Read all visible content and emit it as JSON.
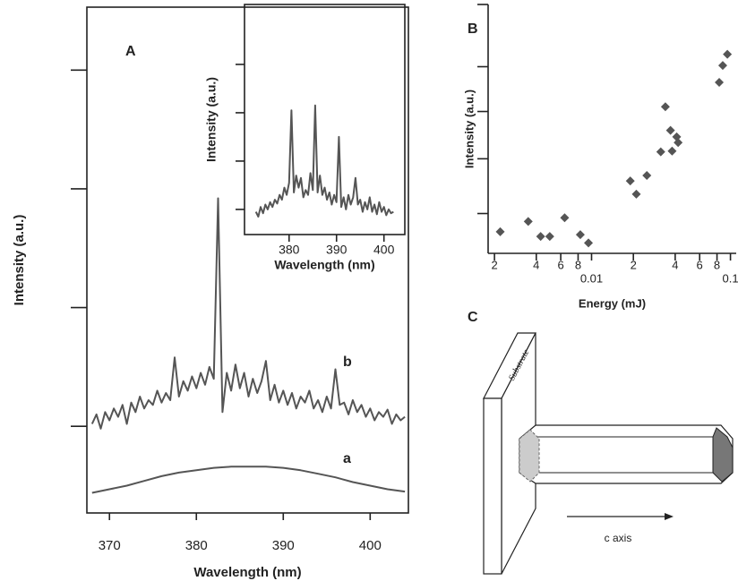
{
  "chart_data": [
    {
      "type": "line",
      "panel_label": "A",
      "xlabel": "Wavelength (nm)",
      "ylabel": "Intensity (a.u.)",
      "xlim": [
        367.4,
        404.4
      ],
      "xticks": [
        370,
        380,
        390,
        400
      ],
      "ylim": [
        0.27,
        4.53
      ],
      "yticks": [
        1,
        2,
        3,
        4
      ],
      "series": [
        {
          "name": "a",
          "color": "#555555",
          "x": [
            368,
            370,
            372,
            374,
            376,
            378,
            380,
            382,
            384,
            386,
            388,
            390,
            392,
            394,
            396,
            398,
            400,
            402,
            404
          ],
          "values": [
            0.44,
            0.47,
            0.5,
            0.54,
            0.58,
            0.61,
            0.63,
            0.65,
            0.66,
            0.66,
            0.66,
            0.65,
            0.63,
            0.6,
            0.57,
            0.53,
            0.5,
            0.47,
            0.45
          ]
        },
        {
          "name": "b",
          "color": "#555555",
          "x": [
            368,
            368.5,
            369,
            369.5,
            370,
            370.5,
            371,
            371.5,
            372,
            372.5,
            373,
            373.5,
            374,
            374.5,
            375,
            375.5,
            376,
            376.5,
            377,
            377.5,
            378,
            378.5,
            379,
            379.5,
            380,
            380.5,
            381,
            381.5,
            382,
            382.5,
            383,
            383.5,
            384,
            384.5,
            385,
            385.5,
            386,
            386.5,
            387,
            387.5,
            388,
            388.5,
            389,
            389.5,
            390,
            390.5,
            391,
            391.5,
            392,
            392.5,
            393,
            393.5,
            394,
            394.5,
            395,
            395.5,
            396,
            396.5,
            397,
            397.5,
            398,
            398.5,
            399,
            399.5,
            400,
            400.5,
            401,
            401.5,
            402,
            402.5,
            403,
            403.5,
            404
          ],
          "values": [
            1.02,
            1.1,
            0.98,
            1.12,
            1.05,
            1.15,
            1.08,
            1.18,
            1.02,
            1.2,
            1.12,
            1.25,
            1.15,
            1.22,
            1.18,
            1.3,
            1.2,
            1.28,
            1.22,
            1.58,
            1.25,
            1.38,
            1.3,
            1.42,
            1.32,
            1.45,
            1.35,
            1.5,
            1.4,
            2.92,
            1.12,
            1.45,
            1.3,
            1.52,
            1.32,
            1.45,
            1.25,
            1.4,
            1.28,
            1.38,
            1.55,
            1.22,
            1.35,
            1.2,
            1.3,
            1.18,
            1.28,
            1.15,
            1.25,
            1.2,
            1.3,
            1.15,
            1.22,
            1.12,
            1.25,
            1.15,
            1.48,
            1.18,
            1.2,
            1.1,
            1.22,
            1.12,
            1.18,
            1.08,
            1.15,
            1.05,
            1.12,
            1.08,
            1.14,
            1.02,
            1.1,
            1.05,
            1.08
          ]
        }
      ]
    },
    {
      "type": "line",
      "xlabel": "Wavelength (nm)",
      "ylabel": "Intensity (a.u.)",
      "xlim": [
        370.6,
        404.4
      ],
      "xticks": [
        380,
        390,
        400
      ],
      "ylim": [
        0.48,
        5.24
      ],
      "yticks": [
        1,
        2,
        3,
        4
      ],
      "series": [
        {
          "color": "#555555",
          "x": [
            373,
            373.5,
            374,
            374.5,
            375,
            375.5,
            376,
            376.5,
            377,
            377.5,
            378,
            378.5,
            379,
            379.5,
            380,
            380.5,
            381,
            381.5,
            382,
            382.5,
            383,
            383.5,
            384,
            384.5,
            385,
            385.5,
            386,
            386.5,
            387,
            387.5,
            388,
            388.5,
            389,
            389.5,
            390,
            390.5,
            391,
            391.5,
            392,
            392.5,
            393,
            393.5,
            394,
            394.5,
            395,
            395.5,
            396,
            396.5,
            397,
            397.5,
            398,
            398.5,
            399,
            399.5,
            400,
            400.5,
            401,
            401.5,
            402
          ],
          "values": [
            0.95,
            0.85,
            1.05,
            0.92,
            1.1,
            1.0,
            1.15,
            1.05,
            1.2,
            1.12,
            1.3,
            1.2,
            1.45,
            1.3,
            1.55,
            3.05,
            1.35,
            1.7,
            1.45,
            1.65,
            1.25,
            1.4,
            1.3,
            1.75,
            1.4,
            3.15,
            1.35,
            1.7,
            1.3,
            1.45,
            1.2,
            1.35,
            1.1,
            1.3,
            1.15,
            2.5,
            1.05,
            1.25,
            1.0,
            1.3,
            1.1,
            1.25,
            1.65,
            1.1,
            1.2,
            0.95,
            1.15,
            1.0,
            1.25,
            0.95,
            1.1,
            0.9,
            1.15,
            0.95,
            1.05,
            0.88,
            1.0,
            0.92,
            0.95
          ]
        }
      ]
    },
    {
      "type": "scatter",
      "panel_label": "B",
      "xlabel": "Energy (mJ)",
      "ylabel": "Intensity (a.u.)",
      "xscale": "log",
      "xlim": [
        0.0018,
        0.11
      ],
      "xticks": [
        {
          "value": 0.002,
          "label": "2"
        },
        {
          "value": 0.004,
          "label": "4"
        },
        {
          "value": 0.006,
          "label": "6"
        },
        {
          "value": 0.008,
          "label": "8"
        },
        0.01,
        {
          "value": 0.02,
          "label": "2"
        },
        {
          "value": 0.04,
          "label": "4"
        },
        {
          "value": 0.06,
          "label": "6"
        },
        {
          "value": 0.08,
          "label": "8"
        },
        0.1
      ],
      "ylim": [
        0,
        10
      ],
      "yticks": [
        1.6,
        3.8,
        5.7,
        7.5,
        10
      ],
      "color": "#555555",
      "x": [
        0.0022,
        0.0035,
        0.0043,
        0.005,
        0.0064,
        0.0083,
        0.0095,
        0.019,
        0.021,
        0.025,
        0.0315,
        0.034,
        0.037,
        0.038,
        0.041,
        0.042,
        0.083,
        0.088,
        0.095
      ],
      "values": [
        0.87,
        1.28,
        0.68,
        0.68,
        1.43,
        0.75,
        0.42,
        2.91,
        2.38,
        3.13,
        4.08,
        5.89,
        4.94,
        4.11,
        4.68,
        4.45,
        6.87,
        7.55,
        8.0
      ]
    }
  ],
  "diagram": {
    "panel_label": "C",
    "substrate": "Substrate",
    "axis_label": "c axis"
  }
}
